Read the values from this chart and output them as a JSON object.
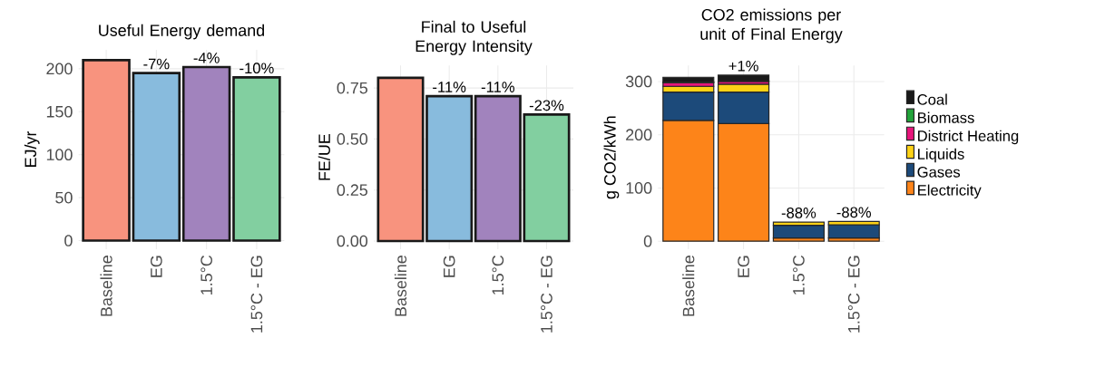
{
  "chart_data": [
    {
      "type": "bar",
      "title": "Useful Energy demand",
      "ylabel": "EJ/yr",
      "categories": [
        "Baseline",
        "EG",
        "1.5°C",
        "1.5°C - EG"
      ],
      "values": [
        210,
        195,
        202,
        190
      ],
      "colors": [
        "#f8937e",
        "#88bbdd",
        "#a183bd",
        "#82cfa0"
      ],
      "annotations": [
        {
          "text": "-7%",
          "x": "EG",
          "y": 195
        },
        {
          "text": "-4%",
          "x": "1.5°C",
          "y": 202
        },
        {
          "text": "-10%",
          "x": "1.5°C - EG",
          "y": 190
        }
      ],
      "ylim": [
        -10,
        222
      ],
      "yticks": [
        0,
        50,
        100,
        150,
        200
      ],
      "grid": true
    },
    {
      "type": "bar",
      "title": "Final to Useful Energy Intensity",
      "ylabel": "FE/UE",
      "categories": [
        "Baseline",
        "EG",
        "1.5°C",
        "1.5°C - EG"
      ],
      "values": [
        0.8,
        0.71,
        0.71,
        0.62
      ],
      "colors": [
        "#f8937e",
        "#88bbdd",
        "#a183bd",
        "#82cfa0"
      ],
      "annotations": [
        {
          "text": "-11%",
          "x": "EG",
          "y": 0.71
        },
        {
          "text": "-11%",
          "x": "1.5°C",
          "y": 0.71
        },
        {
          "text": "-23%",
          "x": "1.5°C - EG",
          "y": 0.62
        }
      ],
      "ylim": [
        -0.04,
        0.86
      ],
      "yticks": [
        {
          "value": 0,
          "label": "0.00"
        },
        {
          "value": 0.25,
          "label": "0.25"
        },
        {
          "value": 0.5,
          "label": "0.50"
        },
        {
          "value": 0.75,
          "label": "0.75"
        }
      ],
      "grid": true
    },
    {
      "type": "bar",
      "title": "CO2 emissions per unit of Final Energy",
      "ylabel": "g CO2/kWh",
      "categories": [
        "Baseline",
        "EG",
        "1.5°C",
        "1.5°C - EG"
      ],
      "stacked": true,
      "legend": "right",
      "series": [
        {
          "name": "Electricity",
          "color": "#fd8419",
          "values": [
            227,
            221,
            6,
            6
          ]
        },
        {
          "name": "Gases",
          "color": "#1c4a7a",
          "values": [
            53,
            59,
            24,
            25
          ]
        },
        {
          "name": "Liquids",
          "color": "#fdd216",
          "values": [
            11,
            15,
            6,
            6
          ]
        },
        {
          "name": "District Heating",
          "color": "#e7157b",
          "values": [
            7,
            5,
            0,
            0
          ]
        },
        {
          "name": "Biomass",
          "color": "#22a33a",
          "values": [
            1,
            1,
            0,
            0
          ]
        },
        {
          "name": "Coal",
          "color": "#1a1a1a",
          "values": [
            9,
            11,
            0,
            0
          ]
        }
      ],
      "annotations": [
        {
          "text": "+1%",
          "x": "EG",
          "y": 312
        },
        {
          "text": "-88%",
          "x": "1.5°C",
          "y": 36
        },
        {
          "text": "-88%",
          "x": "1.5°C - EG",
          "y": 37
        }
      ],
      "ylim": [
        -15,
        330
      ],
      "yticks": [
        0,
        100,
        200,
        300
      ],
      "grid": true
    }
  ]
}
